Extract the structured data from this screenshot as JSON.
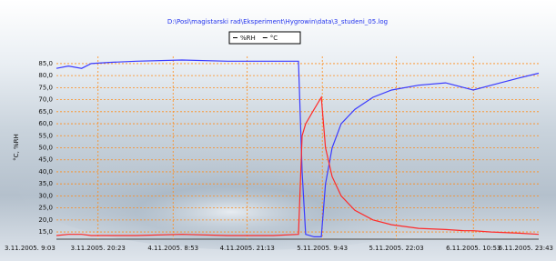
{
  "chart_data": {
    "type": "line",
    "title": "D:\\Posl\\magistarski rad\\Eksperiment\\Hygrowin\\data\\3_studeni_05.log",
    "y_label": "°C, %RH",
    "x": [
      4.4,
      6.4,
      8.6,
      10.2,
      13.2,
      17.7,
      25.3,
      32.9,
      40.5,
      44.7,
      45.3,
      45.9,
      47.3,
      48.5,
      49.2,
      50.3,
      51.8,
      54.1,
      57.1,
      60.2,
      64.7,
      69.2,
      72.3,
      73.8,
      76.8,
      81.4,
      84.7
    ],
    "series": [
      {
        "name": "%RH",
        "color": "#3a3aff",
        "values": [
          83,
          84,
          83,
          85,
          85.5,
          86,
          86.5,
          86,
          86,
          86,
          40,
          14,
          13,
          13,
          35,
          50,
          60,
          66,
          71,
          74,
          76,
          77,
          75,
          74,
          76,
          79,
          81
        ]
      },
      {
        "name": "°C",
        "color": "#ff2a2a",
        "values": [
          13.5,
          14,
          14,
          13.5,
          13.5,
          13.5,
          14,
          13.5,
          13.5,
          14,
          55,
          60,
          66,
          71,
          50,
          38,
          30,
          24,
          20,
          18,
          16.5,
          16,
          15.5,
          15.5,
          15,
          14.5,
          14
        ]
      }
    ],
    "xlim": [
      4.4,
      84.7
    ],
    "xticks": [
      {
        "value": 0,
        "label": "3.11.2005. 9:03"
      },
      {
        "value": 11.33,
        "label": "3.11.2005. 20:23"
      },
      {
        "value": 23.83,
        "label": "4.11.2005. 8:53"
      },
      {
        "value": 36.17,
        "label": "4.11.2005. 21:13"
      },
      {
        "value": 48.67,
        "label": "5.11.2005. 9:43"
      },
      {
        "value": 61,
        "label": "5.11.2005. 22:03"
      },
      {
        "value": 73.83,
        "label": "6.11.2005. 10:53"
      },
      {
        "value": 86.67,
        "label": "6.11.2005. 23:43"
      }
    ],
    "ylim": [
      12,
      88
    ],
    "yticks": [
      {
        "value": 15,
        "label": "15,0"
      },
      {
        "value": 20,
        "label": "20,0"
      },
      {
        "value": 25,
        "label": "25,0"
      },
      {
        "value": 30,
        "label": "30,0"
      },
      {
        "value": 35,
        "label": "35,0"
      },
      {
        "value": 40,
        "label": "40,0"
      },
      {
        "value": 45,
        "label": "45,0"
      },
      {
        "value": 50,
        "label": "50,0"
      },
      {
        "value": 55,
        "label": "55,0"
      },
      {
        "value": 60,
        "label": "60,0"
      },
      {
        "value": 65,
        "label": "65,0"
      },
      {
        "value": 70,
        "label": "70,0"
      },
      {
        "value": 75,
        "label": "75,0"
      },
      {
        "value": 80,
        "label": "80,0"
      },
      {
        "value": 85,
        "label": "85,0"
      }
    ],
    "grid": true
  }
}
